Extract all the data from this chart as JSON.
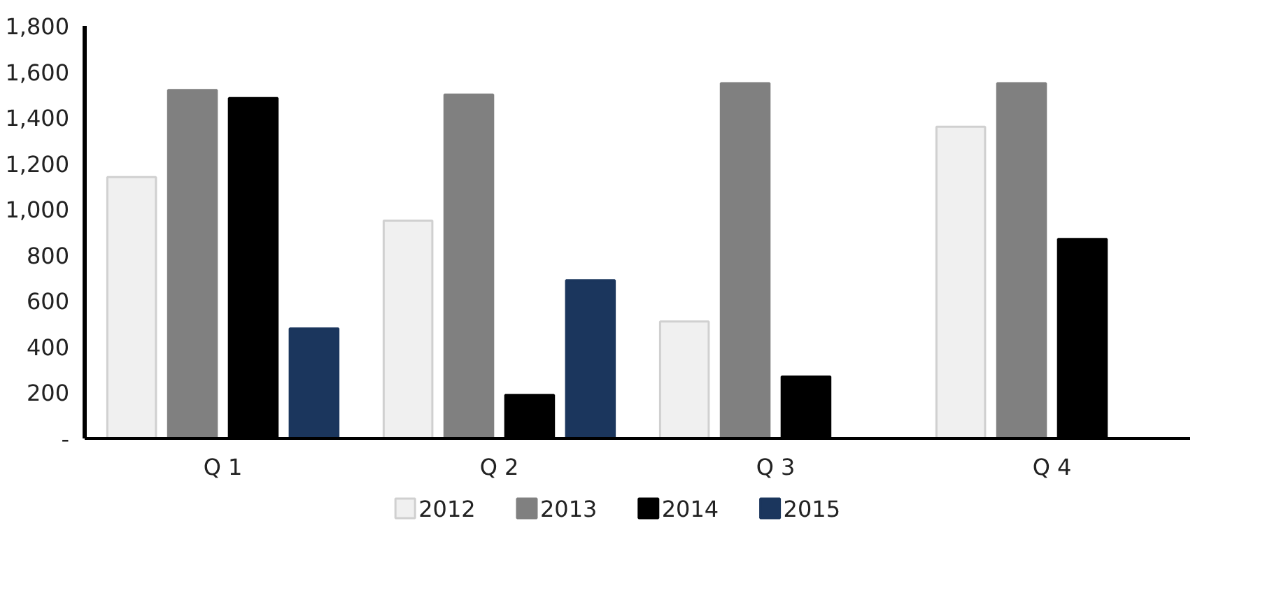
{
  "chart_data": {
    "type": "bar",
    "categories": [
      "Q 1",
      "Q 2",
      "Q 3",
      "Q 4"
    ],
    "series": [
      {
        "name": "2012",
        "color": "#f0f0f0",
        "values": [
          1140,
          950,
          510,
          1360
        ]
      },
      {
        "name": "2013",
        "color": "#808080",
        "values": [
          1520,
          1500,
          1550,
          1550
        ]
      },
      {
        "name": "2014",
        "color": "#000000",
        "values": [
          1485,
          190,
          270,
          870
        ]
      },
      {
        "name": "2015",
        "color": "#1b365d",
        "values": [
          480,
          690,
          null,
          null
        ]
      }
    ],
    "ylim": [
      0,
      1800
    ],
    "yticks": [
      {
        "value": 0,
        "label": "-"
      },
      {
        "value": 200,
        "label": "200"
      },
      {
        "value": 400,
        "label": "400"
      },
      {
        "value": 600,
        "label": "600"
      },
      {
        "value": 800,
        "label": "800"
      },
      {
        "value": 1000,
        "label": "1,000"
      },
      {
        "value": 1200,
        "label": "1,200"
      },
      {
        "value": 1400,
        "label": "1,400"
      },
      {
        "value": 1600,
        "label": "1,600"
      },
      {
        "value": 1800,
        "label": "1,800"
      }
    ],
    "grid": false,
    "legend": "bottom"
  }
}
